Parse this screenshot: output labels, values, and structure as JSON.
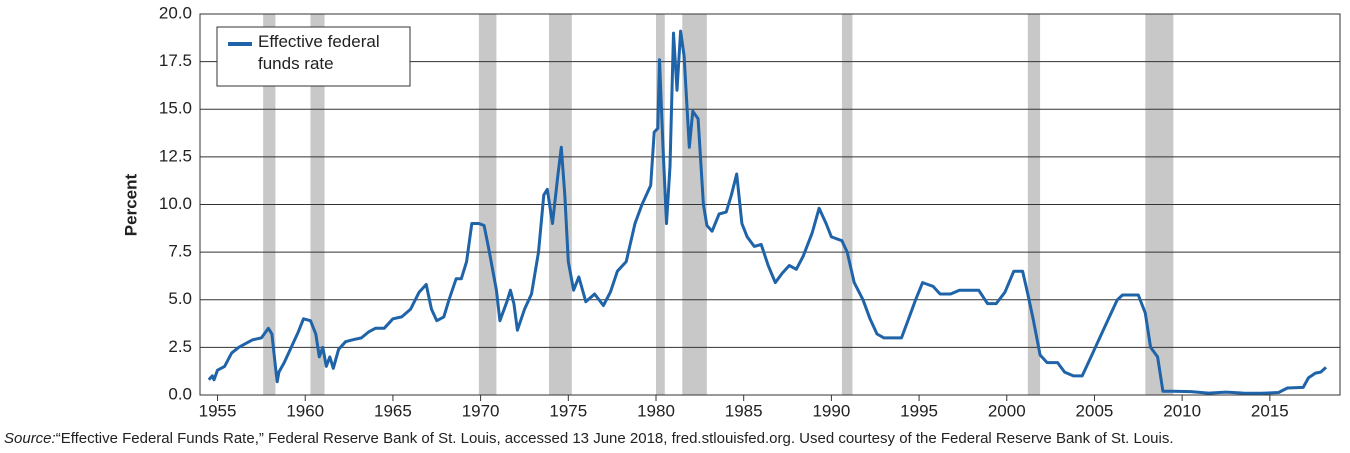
{
  "chart_data": {
    "type": "line",
    "y_label": "Percent",
    "xlim": [
      1954,
      2019
    ],
    "xticks": [
      1955,
      1960,
      1965,
      1970,
      1975,
      1980,
      1985,
      1990,
      1995,
      2000,
      2005,
      2010,
      2015
    ],
    "ylim": [
      0,
      20
    ],
    "yticks": [
      {
        "value": 0,
        "label": "0.0"
      },
      2.5,
      {
        "value": 5,
        "label": "5.0"
      },
      7.5,
      {
        "value": 10,
        "label": "10.0"
      },
      12.5,
      {
        "value": 15,
        "label": "15.0"
      },
      17.5,
      {
        "value": 20,
        "label": "20.0"
      }
    ],
    "grid": true,
    "legend": "upper left",
    "recession_color": "#c8c8c8",
    "recessions": [
      [
        1957.6,
        1958.3
      ],
      [
        1960.3,
        1961.1
      ],
      [
        1969.9,
        1970.9
      ],
      [
        1973.9,
        1975.2
      ],
      [
        1980.0,
        1980.5
      ],
      [
        1981.5,
        1982.9
      ],
      [
        1990.6,
        1991.2
      ],
      [
        2001.2,
        2001.9
      ],
      [
        2007.9,
        2009.5
      ]
    ],
    "series": [
      {
        "name": "Effective federal funds rate",
        "color": "#1f63a8",
        "x": [
          1954.5,
          1954.7,
          1954.8,
          1955.0,
          1955.4,
          1955.8,
          1956.2,
          1956.6,
          1957.0,
          1957.5,
          1957.9,
          1958.1,
          1958.3,
          1958.4,
          1958.5,
          1958.8,
          1959.2,
          1959.6,
          1959.9,
          1960.3,
          1960.6,
          1960.8,
          1961.0,
          1961.2,
          1961.4,
          1961.6,
          1961.9,
          1962.3,
          1962.7,
          1963.2,
          1963.6,
          1964.0,
          1964.5,
          1965.0,
          1965.5,
          1966.0,
          1966.5,
          1966.9,
          1967.2,
          1967.5,
          1967.9,
          1968.2,
          1968.6,
          1968.9,
          1969.2,
          1969.5,
          1969.9,
          1970.2,
          1970.5,
          1970.9,
          1971.1,
          1971.5,
          1971.7,
          1971.9,
          1972.1,
          1972.5,
          1972.9,
          1973.3,
          1973.6,
          1973.8,
          1974.1,
          1974.4,
          1974.6,
          1974.8,
          1975.0,
          1975.3,
          1975.6,
          1976.0,
          1976.5,
          1977.0,
          1977.4,
          1977.8,
          1978.3,
          1978.8,
          1979.2,
          1979.7,
          1979.9,
          1980.1,
          1980.2,
          1980.4,
          1980.6,
          1980.8,
          1981.0,
          1981.2,
          1981.4,
          1981.6,
          1981.9,
          1982.1,
          1982.4,
          1982.7,
          1982.9,
          1983.2,
          1983.6,
          1984.0,
          1984.3,
          1984.6,
          1984.9,
          1985.2,
          1985.6,
          1986.0,
          1986.4,
          1986.8,
          1987.2,
          1987.6,
          1988.0,
          1988.4,
          1988.9,
          1989.3,
          1989.7,
          1990.0,
          1990.6,
          1990.9,
          1991.3,
          1991.8,
          1992.2,
          1992.6,
          1993.0,
          1993.5,
          1994.0,
          1994.4,
          1994.8,
          1995.2,
          1995.8,
          1996.2,
          1996.8,
          1997.3,
          1997.8,
          1998.4,
          1998.9,
          1999.4,
          1999.9,
          2000.4,
          2000.9,
          2001.2,
          2001.5,
          2001.9,
          2002.3,
          2002.9,
          2003.3,
          2003.8,
          2004.3,
          2004.8,
          2005.3,
          2005.8,
          2006.3,
          2006.6,
          2007.5,
          2007.9,
          2008.2,
          2008.6,
          2008.9,
          2009.5,
          2010.5,
          2011.5,
          2012.5,
          2013.5,
          2014.5,
          2015.5,
          2016.0,
          2016.9,
          2017.2,
          2017.6,
          2017.9,
          2018.2
        ],
        "values": [
          0.8,
          1.0,
          0.8,
          1.3,
          1.5,
          2.2,
          2.5,
          2.7,
          2.9,
          3.0,
          3.5,
          3.2,
          1.5,
          0.7,
          1.2,
          1.7,
          2.5,
          3.3,
          4.0,
          3.9,
          3.2,
          2.0,
          2.5,
          1.5,
          2.0,
          1.4,
          2.4,
          2.8,
          2.9,
          3.0,
          3.3,
          3.5,
          3.5,
          4.0,
          4.1,
          4.5,
          5.4,
          5.8,
          4.5,
          3.9,
          4.1,
          5.0,
          6.1,
          6.1,
          7.0,
          9.0,
          9.0,
          8.9,
          7.5,
          5.5,
          3.9,
          4.9,
          5.5,
          4.8,
          3.4,
          4.5,
          5.3,
          7.5,
          10.5,
          10.8,
          9.0,
          11.5,
          13.0,
          10.5,
          7.0,
          5.5,
          6.2,
          4.9,
          5.3,
          4.7,
          5.4,
          6.5,
          7.0,
          9.0,
          10.0,
          11.0,
          13.8,
          14.0,
          17.6,
          13.0,
          9.0,
          12.0,
          19.0,
          16.0,
          19.1,
          17.8,
          13.0,
          14.9,
          14.5,
          10.0,
          8.9,
          8.6,
          9.5,
          9.6,
          10.5,
          11.6,
          9.0,
          8.3,
          7.8,
          7.9,
          6.8,
          5.9,
          6.4,
          6.8,
          6.6,
          7.3,
          8.5,
          9.8,
          9.0,
          8.3,
          8.1,
          7.5,
          5.9,
          5.0,
          4.0,
          3.2,
          3.0,
          3.0,
          3.0,
          4.0,
          5.0,
          5.9,
          5.7,
          5.3,
          5.3,
          5.5,
          5.5,
          5.5,
          4.8,
          4.8,
          5.4,
          6.5,
          6.5,
          5.3,
          4.0,
          2.1,
          1.7,
          1.7,
          1.2,
          1.0,
          1.0,
          2.0,
          3.0,
          4.0,
          5.0,
          5.25,
          5.25,
          4.3,
          2.5,
          2.0,
          0.2,
          0.2,
          0.18,
          0.1,
          0.15,
          0.1,
          0.09,
          0.13,
          0.37,
          0.4,
          0.9,
          1.15,
          1.2,
          1.45
        ]
      }
    ],
    "source_label": "Source:",
    "source": "“Effective Federal Funds Rate,” Federal Reserve Bank of St. Louis, accessed 13 June 2018, fred.stlouisfed.org. Used courtesy of the Federal Reserve Bank of St. Louis."
  }
}
